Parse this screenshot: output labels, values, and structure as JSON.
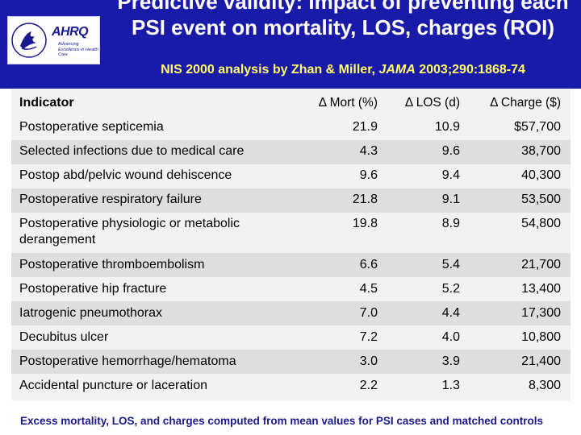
{
  "slide": {
    "title": "Predictive validity: Impact of preventing each PSI event on mortality, LOS, charges (ROI)",
    "subtitle_prefix": "NIS 2000 analysis by Zhan & Miller, ",
    "subtitle_journal": "JAMA",
    "subtitle_suffix": " 2003;290:1868-74",
    "footnote": "Excess mortality, LOS, and charges computed from mean values for PSI cases and matched controls"
  },
  "logo": {
    "name": "AHRQ",
    "tagline": "Advancing Excellence in Health Care"
  },
  "table": {
    "headers": [
      "Indicator",
      "Δ Mort (%)",
      "Δ LOS (d)",
      "Δ Charge ($)"
    ],
    "rows": [
      [
        "Postoperative septicemia",
        "21.9",
        "10.9",
        "$57,700"
      ],
      [
        "Selected infections due to medical care",
        "4.3",
        "9.6",
        "38,700"
      ],
      [
        "Postop abd/pelvic wound dehiscence",
        "9.6",
        "9.4",
        "40,300"
      ],
      [
        "Postoperative respiratory failure",
        "21.8",
        "9.1",
        "53,500"
      ],
      [
        "Postoperative physiologic or metabolic derangement",
        "19.8",
        "8.9",
        "54,800"
      ],
      [
        "Postoperative thromboembolism",
        "6.6",
        "5.4",
        "21,700"
      ],
      [
        "Postoperative hip fracture",
        "4.5",
        "5.2",
        "13,400"
      ],
      [
        "Iatrogenic pneumothorax",
        "7.0",
        "4.4",
        "17,300"
      ],
      [
        "Decubitus ulcer",
        "7.2",
        "4.0",
        "10,800"
      ],
      [
        "Postoperative hemorrhage/hematoma",
        "3.0",
        "3.9",
        "21,400"
      ],
      [
        "Accidental puncture or laceration",
        "2.2",
        "1.3",
        "8,300"
      ]
    ]
  },
  "colors": {
    "header_bg": "#1a1aa8",
    "title_text": "#ffffff",
    "subtitle_text": "#ffff66",
    "row_light": "#f2f2f2",
    "row_dark": "#dedede",
    "footnote_text": "#1a1a90"
  }
}
